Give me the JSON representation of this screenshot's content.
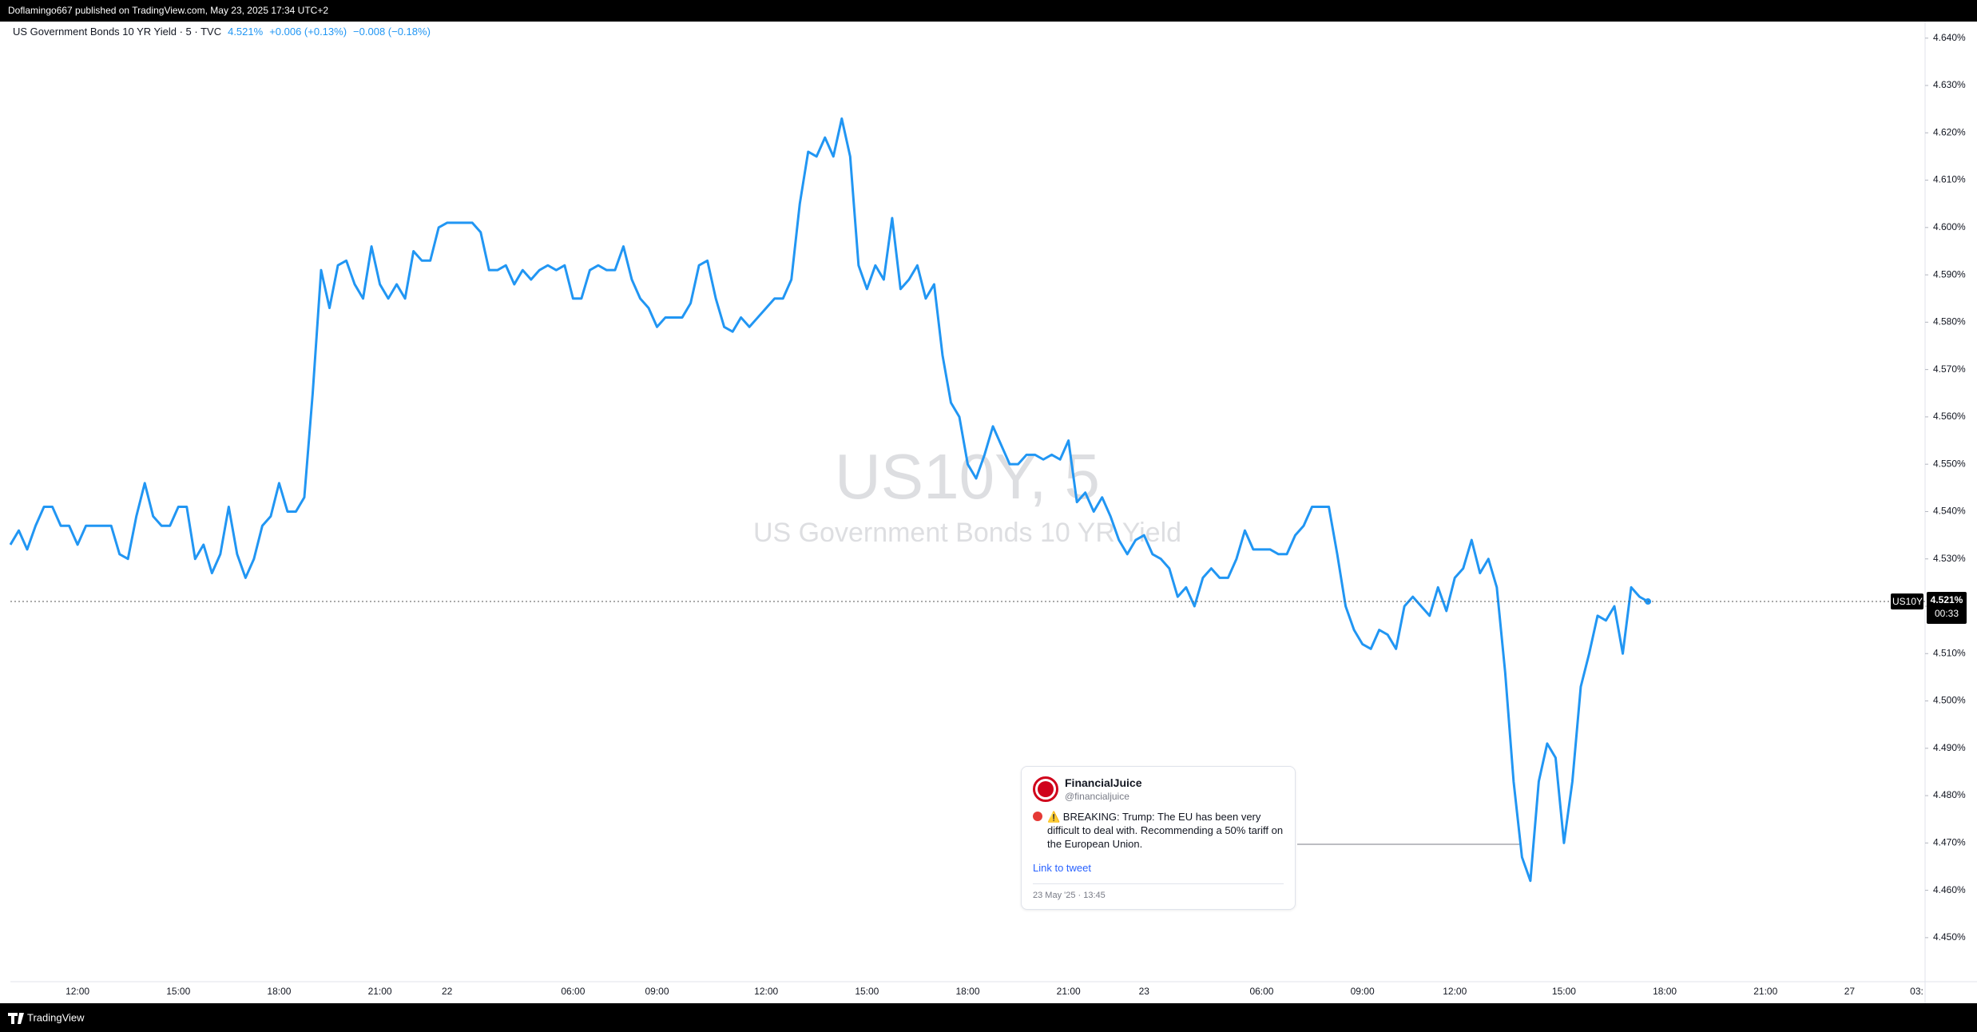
{
  "header": {
    "publisher": "Doflamingo667 published on TradingView.com, May 23, 2025 17:34 UTC+2"
  },
  "chart_data": {
    "type": "line",
    "symbol_title": "US Government Bonds 10 YR Yield · 5 · TVC",
    "legend_price": "4.521%",
    "legend_change": "+0.006 (+0.13%)",
    "legend_change_2": "−0.008 (−0.18%)",
    "watermark_symbol": "US10Y, 5",
    "watermark_name": "US Government Bonds 10 YR Yield",
    "symbol_tag": "US10Y",
    "last_price": 4.521,
    "last_price_label": "4.521%",
    "countdown": "00:33",
    "color": "#2196f3",
    "grid": false,
    "ylim": [
      4.4407,
      4.6435
    ],
    "yticks": [
      {
        "value": 4.45,
        "label": "4.450%"
      },
      {
        "value": 4.46,
        "label": "4.460%"
      },
      {
        "value": 4.47,
        "label": "4.470%"
      },
      {
        "value": 4.48,
        "label": "4.480%"
      },
      {
        "value": 4.49,
        "label": "4.490%"
      },
      {
        "value": 4.5,
        "label": "4.500%"
      },
      {
        "value": 4.51,
        "label": "4.510%"
      },
      {
        "value": 4.52,
        "label": "4.520%"
      },
      {
        "value": 4.53,
        "label": "4.530%"
      },
      {
        "value": 4.54,
        "label": "4.540%"
      },
      {
        "value": 4.55,
        "label": "4.550%"
      },
      {
        "value": 4.56,
        "label": "4.560%"
      },
      {
        "value": 4.57,
        "label": "4.570%"
      },
      {
        "value": 4.58,
        "label": "4.580%"
      },
      {
        "value": 4.59,
        "label": "4.590%"
      },
      {
        "value": 4.6,
        "label": "4.600%"
      },
      {
        "value": 4.61,
        "label": "4.610%"
      },
      {
        "value": 4.62,
        "label": "4.620%"
      },
      {
        "value": 4.63,
        "label": "4.630%"
      },
      {
        "value": 4.64,
        "label": "4.640%"
      }
    ],
    "categories": [
      null,
      null,
      null,
      null,
      null,
      null,
      null,
      null,
      "12:00",
      null,
      null,
      null,
      null,
      null,
      null,
      null,
      null,
      null,
      null,
      null,
      "15:00",
      null,
      null,
      null,
      null,
      null,
      null,
      null,
      null,
      null,
      null,
      null,
      "18:00",
      null,
      null,
      null,
      null,
      null,
      null,
      null,
      null,
      null,
      null,
      null,
      "21:00",
      null,
      null,
      null,
      null,
      null,
      null,
      null,
      "22",
      null,
      null,
      null,
      null,
      null,
      null,
      null,
      null,
      null,
      null,
      null,
      null,
      null,
      null,
      "06:00",
      null,
      null,
      null,
      null,
      null,
      null,
      null,
      null,
      null,
      "09:00",
      null,
      null,
      null,
      null,
      null,
      null,
      null,
      null,
      null,
      null,
      null,
      null,
      "12:00",
      null,
      null,
      null,
      null,
      null,
      null,
      null,
      null,
      null,
      null,
      null,
      "15:00",
      null,
      null,
      null,
      null,
      null,
      null,
      null,
      null,
      null,
      null,
      null,
      "18:00",
      null,
      null,
      null,
      null,
      null,
      null,
      null,
      null,
      null,
      null,
      null,
      "21:00",
      null,
      null,
      null,
      null,
      null,
      null,
      null,
      null,
      "23",
      null,
      null,
      null,
      null,
      null,
      null,
      null,
      null,
      null,
      null,
      null,
      null,
      null,
      "06:00",
      null,
      null,
      null,
      null,
      null,
      null,
      null,
      null,
      null,
      null,
      null,
      "09:00",
      null,
      null,
      null,
      null,
      null,
      null,
      null,
      null,
      null,
      null,
      "12:00",
      null,
      null,
      null,
      null,
      null,
      null,
      null,
      null,
      null,
      null,
      null,
      null,
      "15:00",
      null,
      null,
      null,
      null,
      null,
      null,
      null,
      null,
      null,
      null,
      null,
      "18:00",
      null,
      null,
      null,
      null,
      null,
      null,
      null,
      null,
      null,
      null,
      null,
      "21:00",
      null,
      null,
      null,
      null,
      null,
      null,
      null,
      null,
      null,
      "27",
      null,
      null,
      null,
      null,
      null,
      null,
      null,
      "03:",
      null
    ],
    "values": [
      4.533,
      4.536,
      4.532,
      4.537,
      4.541,
      4.541,
      4.537,
      4.537,
      4.533,
      4.537,
      4.537,
      4.537,
      4.537,
      4.531,
      4.53,
      4.539,
      4.546,
      4.539,
      4.537,
      4.537,
      4.541,
      4.541,
      4.53,
      4.533,
      4.527,
      4.531,
      4.541,
      4.531,
      4.526,
      4.53,
      4.537,
      4.539,
      4.546,
      4.54,
      4.54,
      4.543,
      4.565,
      4.591,
      4.583,
      4.592,
      4.593,
      4.588,
      4.585,
      4.596,
      4.588,
      4.585,
      4.588,
      4.585,
      4.595,
      4.593,
      4.593,
      4.6,
      4.601,
      4.601,
      4.601,
      4.601,
      4.599,
      4.591,
      4.591,
      4.592,
      4.588,
      4.591,
      4.589,
      4.591,
      4.592,
      4.591,
      4.592,
      4.585,
      4.585,
      4.591,
      4.592,
      4.591,
      4.591,
      4.596,
      4.589,
      4.585,
      4.583,
      4.579,
      4.581,
      4.581,
      4.581,
      4.584,
      4.592,
      4.593,
      4.585,
      4.579,
      4.578,
      4.581,
      4.579,
      4.581,
      4.583,
      4.585,
      4.585,
      4.589,
      4.605,
      4.616,
      4.615,
      4.619,
      4.615,
      4.623,
      4.615,
      4.592,
      4.587,
      4.592,
      4.589,
      4.602,
      4.587,
      4.589,
      4.592,
      4.585,
      4.588,
      4.573,
      4.563,
      4.56,
      4.55,
      4.547,
      4.552,
      4.558,
      4.554,
      4.55,
      4.55,
      4.552,
      4.552,
      4.551,
      4.552,
      4.551,
      4.555,
      4.542,
      4.544,
      4.54,
      4.543,
      4.539,
      4.534,
      4.531,
      4.534,
      4.535,
      4.531,
      4.53,
      4.528,
      4.522,
      4.524,
      4.52,
      4.526,
      4.528,
      4.526,
      4.526,
      4.53,
      4.536,
      4.532,
      4.532,
      4.532,
      4.531,
      4.531,
      4.535,
      4.537,
      4.541,
      4.541,
      4.541,
      4.531,
      4.52,
      4.515,
      4.512,
      4.511,
      4.515,
      4.514,
      4.511,
      4.52,
      4.522,
      4.52,
      4.518,
      4.524,
      4.519,
      4.526,
      4.528,
      4.534,
      4.527,
      4.53,
      4.524,
      4.506,
      4.483,
      4.467,
      4.462,
      4.483,
      4.491,
      4.488,
      4.47,
      4.483,
      4.503,
      4.51,
      4.518,
      4.517,
      4.52,
      4.51,
      4.524,
      4.522,
      4.521,
      null,
      null,
      null,
      null,
      null,
      null,
      null,
      null,
      null,
      null,
      null,
      null,
      null,
      null,
      null,
      null,
      null,
      null,
      null,
      null,
      null,
      null,
      null,
      null,
      null,
      null,
      null,
      null,
      null,
      null,
      null,
      null,
      null
    ]
  },
  "tweet": {
    "name": "FinancialJuice",
    "handle": "@financialjuice",
    "text": "⚠️ BREAKING: Trump: The EU has been very difficult to deal with. Recommending a 50% tariff on the European Union.",
    "link": "Link to tweet",
    "date": "23 May '25 · 13:45"
  },
  "footer": {
    "brand": "TradingView"
  }
}
